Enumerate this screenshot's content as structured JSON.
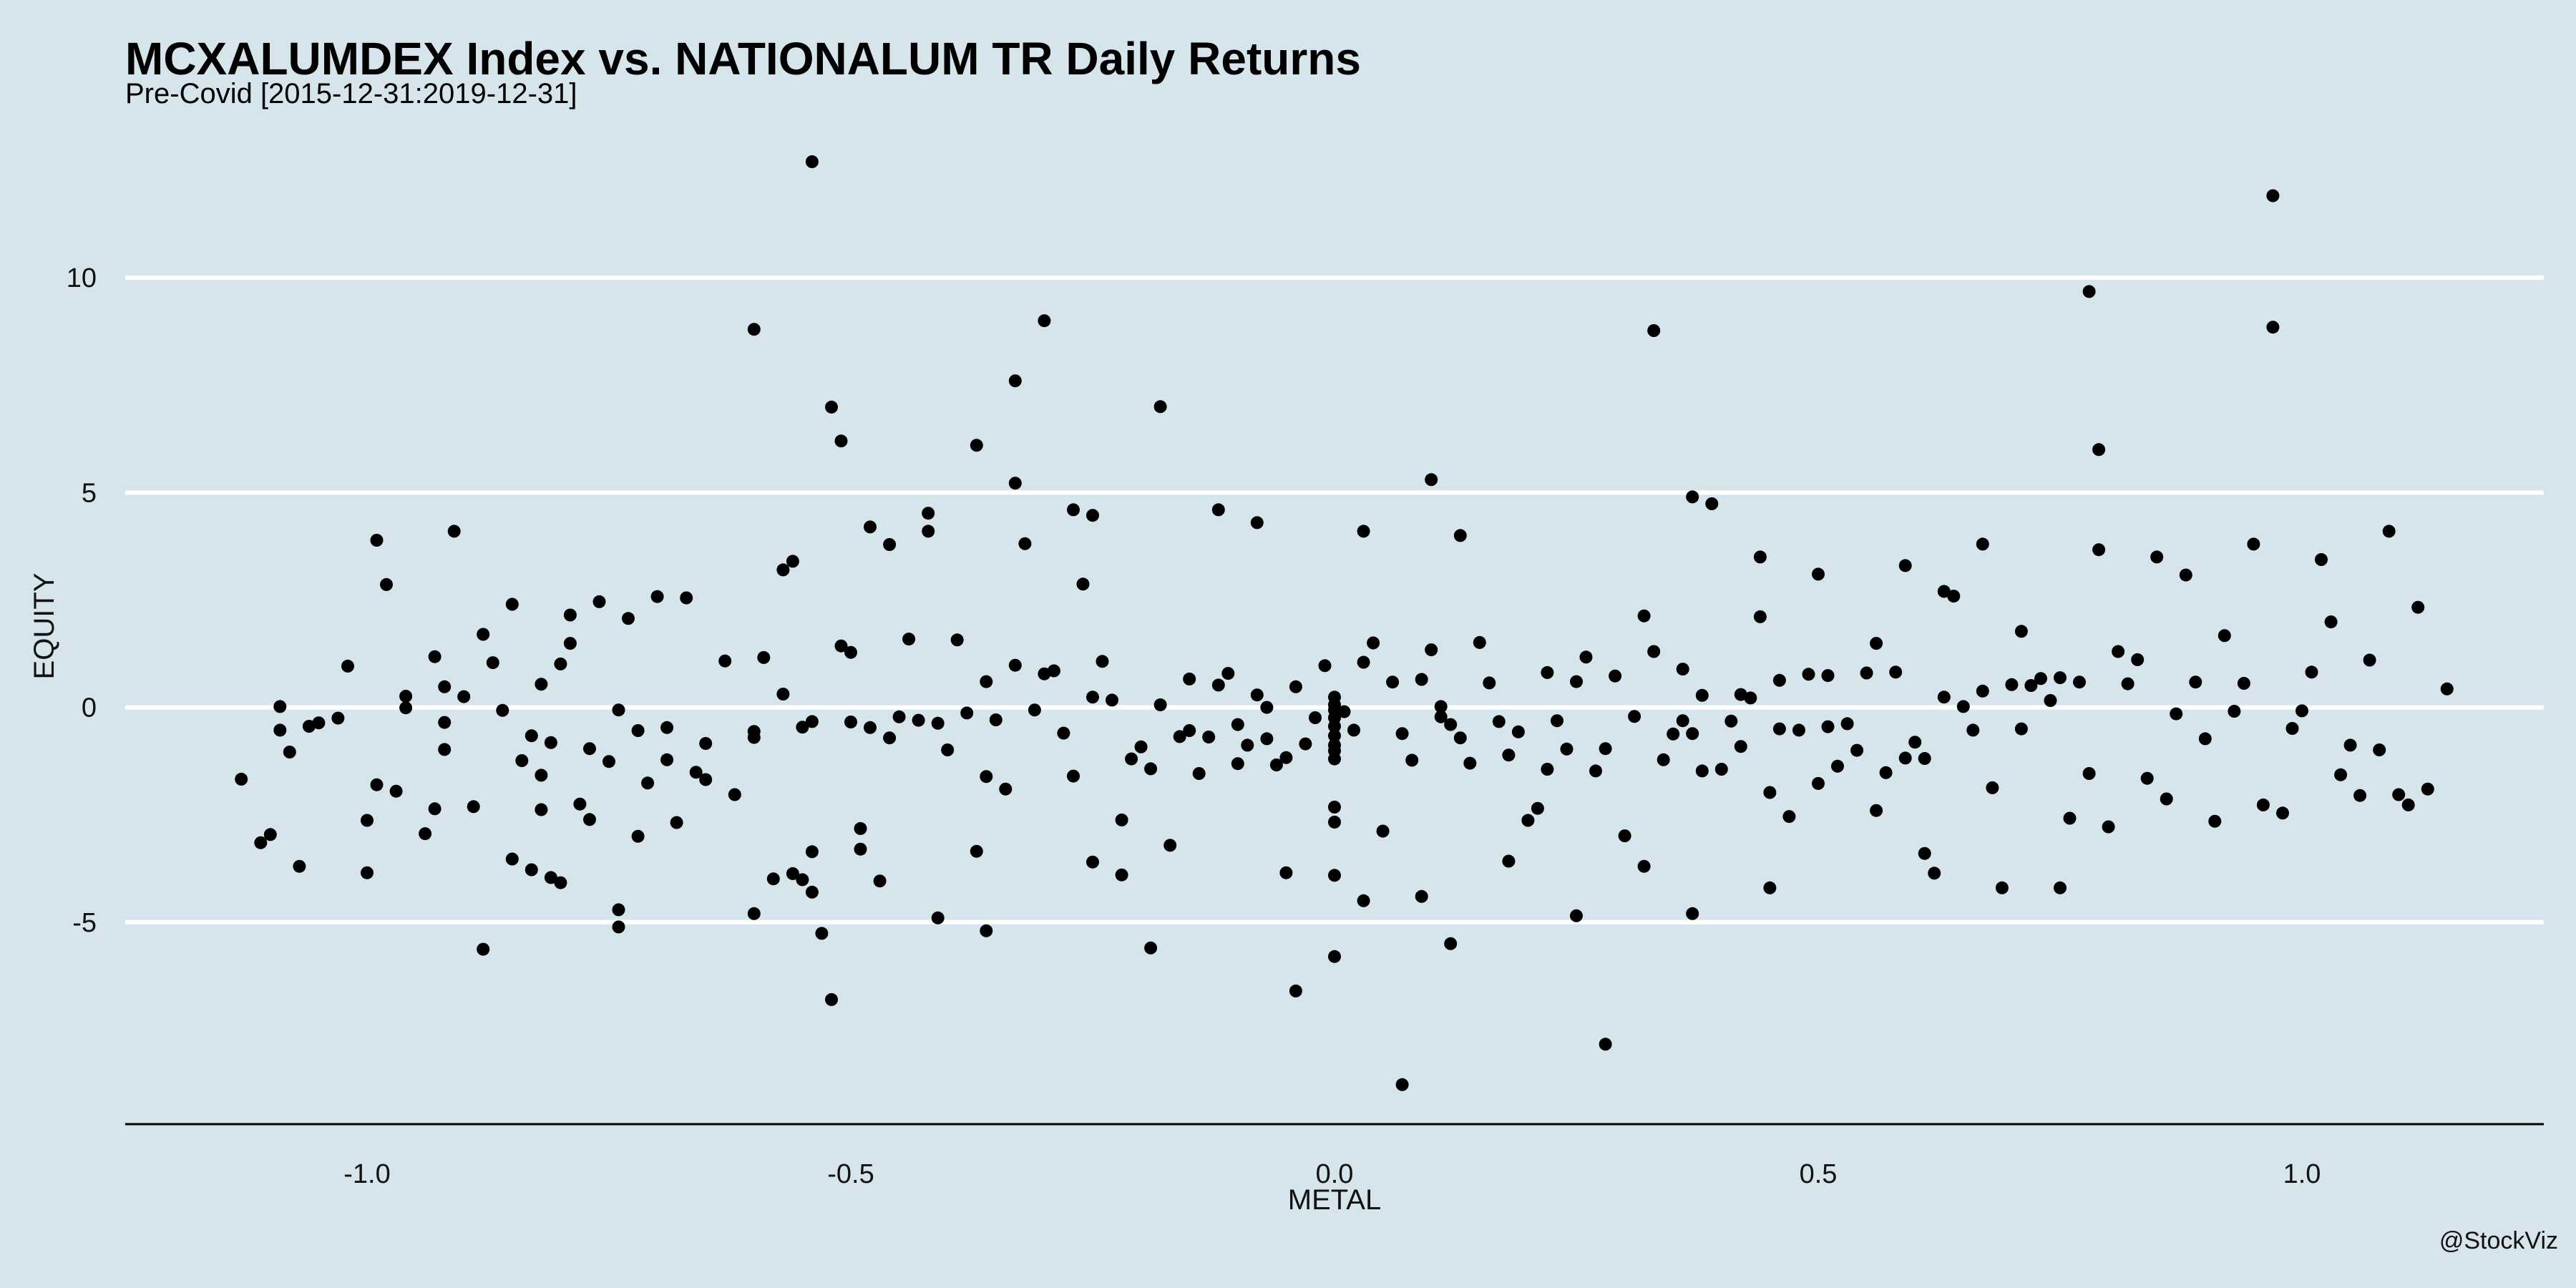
{
  "caption": "@StockViz",
  "chart_data": {
    "type": "scatter",
    "title": "MCXALUMDEX Index vs. NATIONALUM TR Daily Returns",
    "subtitle": "Pre-Covid [2015-12-31:2019-12-31]",
    "xlabel": "METAL",
    "ylabel": "EQUITY",
    "xlim": [
      -1.25,
      1.25
    ],
    "ylim": [
      -9.7,
      13.3
    ],
    "xticks": [
      "-1.0",
      "-0.5",
      "0.0",
      "0.5",
      "1.0"
    ],
    "yticks": [
      "-5",
      "0",
      "5",
      "10"
    ],
    "grid": "horizontal",
    "point_color": "#000000",
    "grid_color": "#ffffff",
    "points": [
      [
        -1.13,
        -1.67
      ],
      [
        -1.11,
        -3.15
      ],
      [
        -1.1,
        -2.96
      ],
      [
        -1.09,
        0.02
      ],
      [
        -1.09,
        -0.53
      ],
      [
        -1.08,
        -1.04
      ],
      [
        -1.07,
        -3.7
      ],
      [
        -1.06,
        -0.44
      ],
      [
        -1.05,
        -0.36
      ],
      [
        -1.03,
        -0.25
      ],
      [
        -1.02,
        0.96
      ],
      [
        -1.0,
        -2.63
      ],
      [
        -0.99,
        3.89
      ],
      [
        -1.0,
        -3.85
      ],
      [
        -0.99,
        -1.8
      ],
      [
        -0.97,
        -1.95
      ],
      [
        -0.98,
        2.86
      ],
      [
        -0.96,
        0.26
      ],
      [
        -0.96,
        -0.01
      ],
      [
        -0.94,
        -2.94
      ],
      [
        -0.93,
        1.18
      ],
      [
        -0.93,
        -2.36
      ],
      [
        -0.92,
        -0.35
      ],
      [
        -0.92,
        -0.98
      ],
      [
        -0.92,
        0.48
      ],
      [
        -0.91,
        4.1
      ],
      [
        -0.9,
        0.25
      ],
      [
        -0.89,
        -2.31
      ],
      [
        -0.88,
        1.7
      ],
      [
        -0.88,
        -5.63
      ],
      [
        -0.87,
        1.04
      ],
      [
        -0.86,
        -0.07
      ],
      [
        -0.85,
        2.4
      ],
      [
        -0.85,
        -3.53
      ],
      [
        -0.84,
        -1.24
      ],
      [
        -0.83,
        -0.66
      ],
      [
        -0.83,
        -3.78
      ],
      [
        -0.82,
        -1.58
      ],
      [
        -0.82,
        -2.38
      ],
      [
        -0.82,
        0.54
      ],
      [
        -0.81,
        -3.96
      ],
      [
        -0.81,
        -0.82
      ],
      [
        -0.8,
        -4.08
      ],
      [
        -0.8,
        1.01
      ],
      [
        -0.79,
        1.49
      ],
      [
        -0.79,
        2.15
      ],
      [
        -0.78,
        -2.25
      ],
      [
        -0.77,
        -0.96
      ],
      [
        -0.77,
        -2.61
      ],
      [
        -0.76,
        2.46
      ],
      [
        -0.75,
        -1.26
      ],
      [
        -0.74,
        -4.71
      ],
      [
        -0.74,
        -5.11
      ],
      [
        -0.74,
        -0.06
      ],
      [
        -0.73,
        2.07
      ],
      [
        -0.72,
        -3.0
      ],
      [
        -0.72,
        -0.54
      ],
      [
        -0.71,
        -1.76
      ],
      [
        -0.7,
        2.58
      ],
      [
        -0.69,
        -1.22
      ],
      [
        -0.69,
        -0.47
      ],
      [
        -0.68,
        -2.68
      ],
      [
        -0.67,
        2.55
      ],
      [
        -0.66,
        -1.51
      ],
      [
        -0.65,
        -0.84
      ],
      [
        -0.65,
        -1.68
      ],
      [
        -0.63,
        1.08
      ],
      [
        -0.62,
        -2.03
      ],
      [
        -0.6,
        -0.7
      ],
      [
        -0.6,
        -0.56
      ],
      [
        -0.59,
        1.16
      ],
      [
        -0.58,
        -3.99
      ],
      [
        -0.57,
        0.31
      ],
      [
        -0.56,
        -3.87
      ],
      [
        -0.55,
        -4.01
      ],
      [
        -0.55,
        -0.46
      ],
      [
        -0.54,
        -3.36
      ],
      [
        -0.54,
        -0.33
      ],
      [
        -0.53,
        -5.26
      ],
      [
        -0.52,
        6.99
      ],
      [
        -0.51,
        1.43
      ],
      [
        -0.5,
        1.28
      ],
      [
        -0.5,
        -0.34
      ],
      [
        -0.49,
        -2.82
      ],
      [
        -0.49,
        -3.3
      ],
      [
        -0.48,
        -0.47
      ],
      [
        -0.47,
        -4.04
      ],
      [
        -0.46,
        -0.71
      ],
      [
        -0.46,
        3.79
      ],
      [
        -0.45,
        -0.22
      ],
      [
        -0.44,
        1.59
      ],
      [
        -0.43,
        -0.3
      ],
      [
        -0.42,
        4.52
      ],
      [
        -0.41,
        -0.37
      ],
      [
        -0.4,
        -0.99
      ],
      [
        -0.39,
        1.57
      ],
      [
        -0.38,
        -0.13
      ],
      [
        -0.37,
        -3.35
      ],
      [
        -0.36,
        0.6
      ],
      [
        -0.36,
        -1.61
      ],
      [
        -0.35,
        -0.29
      ],
      [
        -0.34,
        -1.9
      ],
      [
        -0.33,
        5.22
      ],
      [
        -0.33,
        0.98
      ],
      [
        -0.32,
        3.81
      ],
      [
        -0.31,
        -0.06
      ],
      [
        -0.3,
        0.78
      ],
      [
        -0.29,
        0.85
      ],
      [
        -0.28,
        -0.6
      ],
      [
        -0.27,
        -1.6
      ],
      [
        -0.26,
        2.87
      ],
      [
        -0.25,
        4.47
      ],
      [
        -0.25,
        0.24
      ],
      [
        -0.24,
        1.07
      ],
      [
        -0.23,
        0.17
      ],
      [
        -0.22,
        -2.62
      ],
      [
        -0.21,
        -1.2
      ],
      [
        -0.2,
        -0.92
      ],
      [
        -0.19,
        -1.43
      ],
      [
        -0.18,
        0.06
      ],
      [
        -0.17,
        -3.21
      ],
      [
        -0.16,
        -0.68
      ],
      [
        -0.15,
        -0.54
      ],
      [
        -0.15,
        0.66
      ],
      [
        -0.14,
        -1.54
      ],
      [
        -0.13,
        -0.69
      ],
      [
        -0.12,
        0.52
      ],
      [
        -0.11,
        0.79
      ],
      [
        -0.1,
        -0.4
      ],
      [
        -0.1,
        -1.31
      ],
      [
        -0.09,
        -0.88
      ],
      [
        -0.08,
        0.29
      ],
      [
        -0.07,
        -0.73
      ],
      [
        -0.07,
        0.0
      ],
      [
        -0.06,
        -1.34
      ],
      [
        -0.05,
        -3.85
      ],
      [
        -0.05,
        -1.17
      ],
      [
        -0.04,
        0.48
      ],
      [
        -0.03,
        -0.85
      ],
      [
        -0.02,
        -0.24
      ],
      [
        -0.01,
        0.97
      ],
      [
        -0.0,
        -2.32
      ],
      [
        0.0,
        -1.01
      ],
      [
        0.0,
        -0.66
      ],
      [
        0.0,
        -0.44
      ],
      [
        0.0,
        0.06
      ],
      [
        0.0,
        -0.24
      ],
      [
        0.0,
        0.24
      ],
      [
        0.0,
        -0.06
      ],
      [
        0.0,
        -0.88
      ],
      [
        0.0,
        -1.2
      ],
      [
        0.0,
        -2.67
      ],
      [
        0.0,
        -3.91
      ],
      [
        0.01,
        -0.1
      ],
      [
        0.02,
        -0.53
      ],
      [
        0.03,
        1.05
      ],
      [
        0.04,
        1.5
      ],
      [
        0.05,
        -2.88
      ],
      [
        0.06,
        0.59
      ],
      [
        0.07,
        -0.61
      ],
      [
        0.07,
        -8.78
      ],
      [
        0.08,
        -1.23
      ],
      [
        0.09,
        0.65
      ],
      [
        0.1,
        1.34
      ],
      [
        0.11,
        -0.22
      ],
      [
        0.11,
        0.02
      ],
      [
        0.12,
        -0.4
      ],
      [
        0.13,
        -0.71
      ],
      [
        0.14,
        -1.3
      ],
      [
        0.15,
        1.51
      ],
      [
        0.16,
        0.57
      ],
      [
        0.17,
        -0.33
      ],
      [
        0.18,
        -3.58
      ],
      [
        0.18,
        -1.11
      ],
      [
        0.19,
        -0.57
      ],
      [
        0.2,
        -2.63
      ],
      [
        0.21,
        -2.35
      ],
      [
        0.22,
        0.81
      ],
      [
        0.22,
        -1.44
      ],
      [
        0.23,
        -0.31
      ],
      [
        0.24,
        -0.97
      ],
      [
        0.25,
        0.6
      ],
      [
        0.25,
        -4.85
      ],
      [
        0.26,
        1.17
      ],
      [
        0.27,
        -1.48
      ],
      [
        0.28,
        -0.96
      ],
      [
        0.28,
        -7.84
      ],
      [
        0.29,
        0.73
      ],
      [
        0.3,
        -2.99
      ],
      [
        0.31,
        -0.21
      ],
      [
        0.32,
        2.13
      ],
      [
        0.33,
        8.77
      ],
      [
        0.33,
        1.3
      ],
      [
        0.34,
        -1.22
      ],
      [
        0.35,
        -0.62
      ],
      [
        0.36,
        -0.31
      ],
      [
        0.36,
        0.89
      ],
      [
        0.37,
        -0.61
      ],
      [
        0.38,
        0.28
      ],
      [
        0.38,
        -1.48
      ],
      [
        0.39,
        4.74
      ],
      [
        0.4,
        -1.44
      ],
      [
        0.41,
        -0.32
      ],
      [
        0.42,
        0.3
      ],
      [
        0.42,
        -0.91
      ],
      [
        0.43,
        0.22
      ],
      [
        0.44,
        2.11
      ],
      [
        0.45,
        -1.98
      ],
      [
        0.46,
        0.63
      ],
      [
        0.46,
        -0.5
      ],
      [
        0.47,
        -2.54
      ],
      [
        0.48,
        -0.53
      ],
      [
        0.49,
        0.77
      ],
      [
        0.5,
        -1.77
      ],
      [
        0.51,
        0.74
      ],
      [
        0.51,
        -0.45
      ],
      [
        0.52,
        -1.37
      ],
      [
        0.53,
        -0.38
      ],
      [
        0.54,
        -1.0
      ],
      [
        0.55,
        0.8
      ],
      [
        0.56,
        1.49
      ],
      [
        0.56,
        -2.4
      ],
      [
        0.57,
        -1.52
      ],
      [
        0.58,
        0.82
      ],
      [
        0.59,
        -1.18
      ],
      [
        0.6,
        -0.81
      ],
      [
        0.61,
        -1.19
      ],
      [
        0.62,
        -3.86
      ],
      [
        0.63,
        0.24
      ],
      [
        0.64,
        2.59
      ],
      [
        0.65,
        0.02
      ],
      [
        0.66,
        -0.53
      ],
      [
        0.67,
        0.38
      ],
      [
        0.68,
        -1.87
      ],
      [
        0.69,
        -4.2
      ],
      [
        0.7,
        0.53
      ],
      [
        0.71,
        1.77
      ],
      [
        0.71,
        -0.5
      ],
      [
        0.72,
        0.51
      ],
      [
        0.73,
        0.67
      ],
      [
        0.74,
        0.16
      ],
      [
        0.75,
        0.69
      ],
      [
        0.76,
        -2.58
      ],
      [
        0.77,
        0.59
      ],
      [
        0.78,
        9.68
      ],
      [
        0.78,
        -1.54
      ],
      [
        0.79,
        3.67
      ],
      [
        0.8,
        -2.78
      ],
      [
        0.81,
        1.3
      ],
      [
        0.82,
        0.55
      ],
      [
        0.83,
        1.11
      ],
      [
        0.84,
        -1.65
      ],
      [
        0.85,
        3.5
      ],
      [
        0.86,
        -2.13
      ],
      [
        0.87,
        -0.15
      ],
      [
        0.88,
        3.08
      ],
      [
        0.89,
        0.59
      ],
      [
        0.9,
        -0.73
      ],
      [
        0.91,
        -2.65
      ],
      [
        0.92,
        1.67
      ],
      [
        0.93,
        -0.09
      ],
      [
        0.94,
        0.56
      ],
      [
        0.95,
        3.8
      ],
      [
        0.96,
        -2.27
      ],
      [
        0.97,
        11.91
      ],
      [
        0.97,
        8.85
      ],
      [
        0.98,
        -2.46
      ],
      [
        0.99,
        -0.49
      ],
      [
        1.0,
        -0.08
      ],
      [
        1.01,
        0.82
      ],
      [
        1.02,
        3.44
      ],
      [
        1.03,
        1.99
      ],
      [
        1.04,
        -1.57
      ],
      [
        1.05,
        -0.88
      ],
      [
        1.06,
        -2.05
      ],
      [
        1.07,
        1.1
      ],
      [
        1.08,
        -0.99
      ],
      [
        1.09,
        4.1
      ],
      [
        1.1,
        -2.03
      ],
      [
        1.11,
        -2.27
      ],
      [
        1.12,
        2.33
      ],
      [
        1.13,
        -1.9
      ],
      [
        1.15,
        0.43
      ],
      [
        -0.54,
        12.7
      ],
      [
        -0.6,
        8.8
      ],
      [
        -0.3,
        9.0
      ],
      [
        -0.33,
        7.6
      ],
      [
        -0.18,
        7.0
      ],
      [
        -0.37,
        6.1
      ],
      [
        -0.51,
        6.2
      ],
      [
        -0.12,
        4.6
      ],
      [
        -0.08,
        4.3
      ],
      [
        -0.27,
        4.6
      ],
      [
        -0.48,
        4.2
      ],
      [
        -0.56,
        3.4
      ],
      [
        -0.57,
        3.2
      ],
      [
        -0.42,
        4.1
      ],
      [
        0.03,
        4.1
      ],
      [
        0.1,
        5.3
      ],
      [
        0.13,
        4.0
      ],
      [
        0.37,
        4.9
      ],
      [
        0.63,
        2.7
      ],
      [
        0.67,
        3.8
      ],
      [
        0.79,
        6.0
      ],
      [
        0.44,
        3.5
      ],
      [
        0.5,
        3.1
      ],
      [
        0.59,
        3.3
      ],
      [
        -0.52,
        -6.8
      ],
      [
        -0.04,
        -6.6
      ],
      [
        0.0,
        -5.8
      ],
      [
        -0.19,
        -5.6
      ],
      [
        0.12,
        -5.5
      ],
      [
        0.09,
        -4.4
      ],
      [
        -0.36,
        -5.2
      ],
      [
        -0.41,
        -4.9
      ],
      [
        -0.6,
        -4.8
      ],
      [
        0.37,
        -4.8
      ],
      [
        -0.54,
        -4.3
      ],
      [
        0.03,
        -4.5
      ],
      [
        -0.22,
        -3.9
      ],
      [
        0.45,
        -4.2
      ],
      [
        0.75,
        -4.2
      ],
      [
        -0.25,
        -3.6
      ],
      [
        0.32,
        -3.7
      ],
      [
        0.61,
        -3.4
      ]
    ]
  }
}
